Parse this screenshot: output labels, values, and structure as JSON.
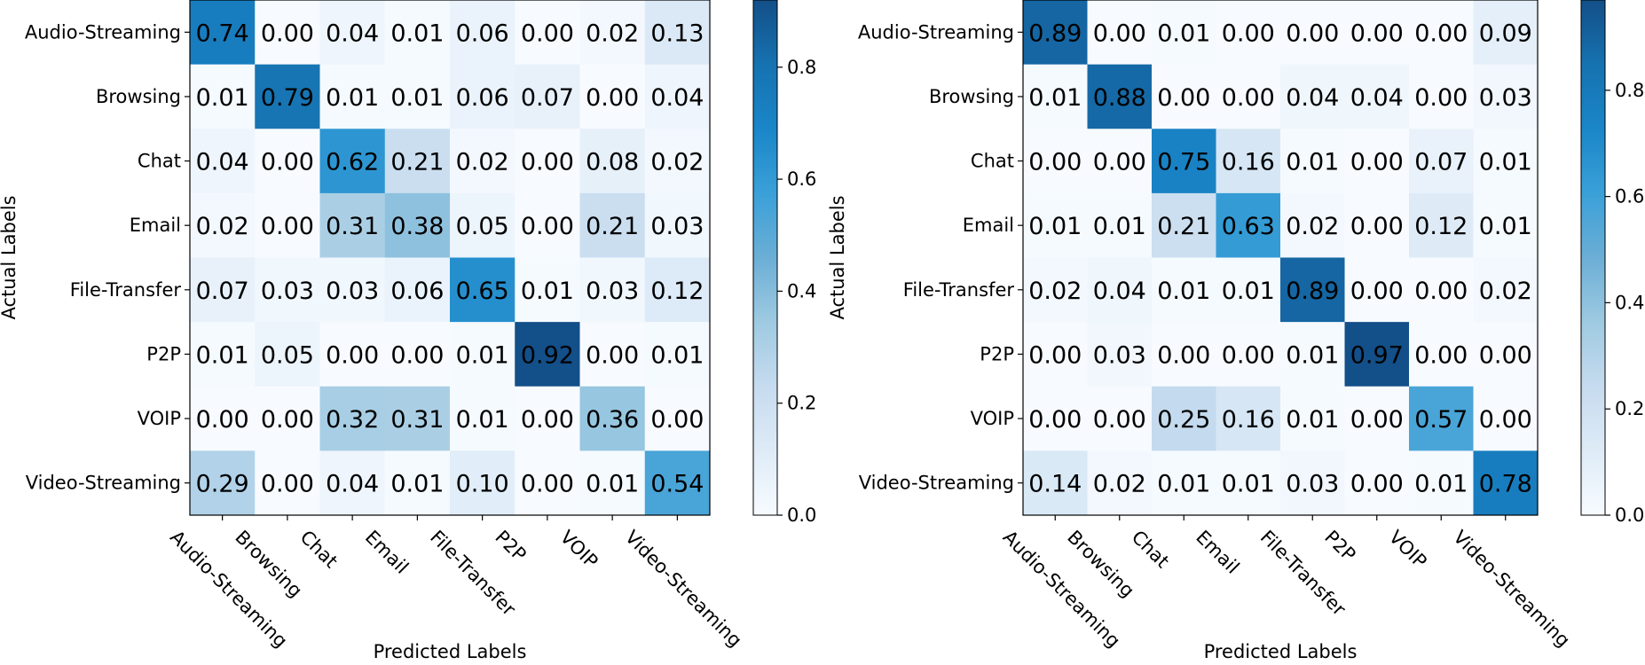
{
  "chart_data": [
    {
      "type": "heatmap",
      "title": "",
      "xlabel": "Predicted Labels",
      "ylabel": "Actual Labels",
      "categories": [
        "Audio-Streaming",
        "Browsing",
        "Chat",
        "Email",
        "File-Transfer",
        "P2P",
        "VOIP",
        "Video-Streaming"
      ],
      "values": [
        [
          0.74,
          0.0,
          0.04,
          0.01,
          0.06,
          0.0,
          0.02,
          0.13
        ],
        [
          0.01,
          0.79,
          0.01,
          0.01,
          0.06,
          0.07,
          0.0,
          0.04
        ],
        [
          0.04,
          0.0,
          0.62,
          0.21,
          0.02,
          0.0,
          0.08,
          0.02
        ],
        [
          0.02,
          0.0,
          0.31,
          0.38,
          0.05,
          0.0,
          0.21,
          0.03
        ],
        [
          0.07,
          0.03,
          0.03,
          0.06,
          0.65,
          0.01,
          0.03,
          0.12
        ],
        [
          0.01,
          0.05,
          0.0,
          0.0,
          0.01,
          0.92,
          0.0,
          0.01
        ],
        [
          0.0,
          0.0,
          0.32,
          0.31,
          0.01,
          0.0,
          0.36,
          0.0
        ],
        [
          0.29,
          0.0,
          0.04,
          0.01,
          0.1,
          0.0,
          0.01,
          0.54
        ]
      ],
      "colorbar": {
        "min": 0.0,
        "max": 0.92,
        "ticks": [
          "0.0",
          "0.2",
          "0.4",
          "0.6",
          "0.8"
        ]
      }
    },
    {
      "type": "heatmap",
      "title": "",
      "xlabel": "Predicted Labels",
      "ylabel": "Actual Labels",
      "categories": [
        "Audio-Streaming",
        "Browsing",
        "Chat",
        "Email",
        "File-Transfer",
        "P2P",
        "VOIP",
        "Video-Streaming"
      ],
      "values": [
        [
          0.89,
          0.0,
          0.01,
          0.0,
          0.0,
          0.0,
          0.0,
          0.09
        ],
        [
          0.01,
          0.88,
          0.0,
          0.0,
          0.04,
          0.04,
          0.0,
          0.03
        ],
        [
          0.0,
          0.0,
          0.75,
          0.16,
          0.01,
          0.0,
          0.07,
          0.01
        ],
        [
          0.01,
          0.01,
          0.21,
          0.63,
          0.02,
          0.0,
          0.12,
          0.01
        ],
        [
          0.02,
          0.04,
          0.01,
          0.01,
          0.89,
          0.0,
          0.0,
          0.02
        ],
        [
          0.0,
          0.03,
          0.0,
          0.0,
          0.01,
          0.97,
          0.0,
          0.0
        ],
        [
          0.0,
          0.0,
          0.25,
          0.16,
          0.01,
          0.0,
          0.57,
          0.0
        ],
        [
          0.14,
          0.02,
          0.01,
          0.01,
          0.03,
          0.0,
          0.01,
          0.78
        ]
      ],
      "colorbar": {
        "min": 0.0,
        "max": 0.97,
        "ticks": [
          "0.0",
          "0.2",
          "0.4",
          "0.6",
          "0.8"
        ]
      }
    }
  ]
}
